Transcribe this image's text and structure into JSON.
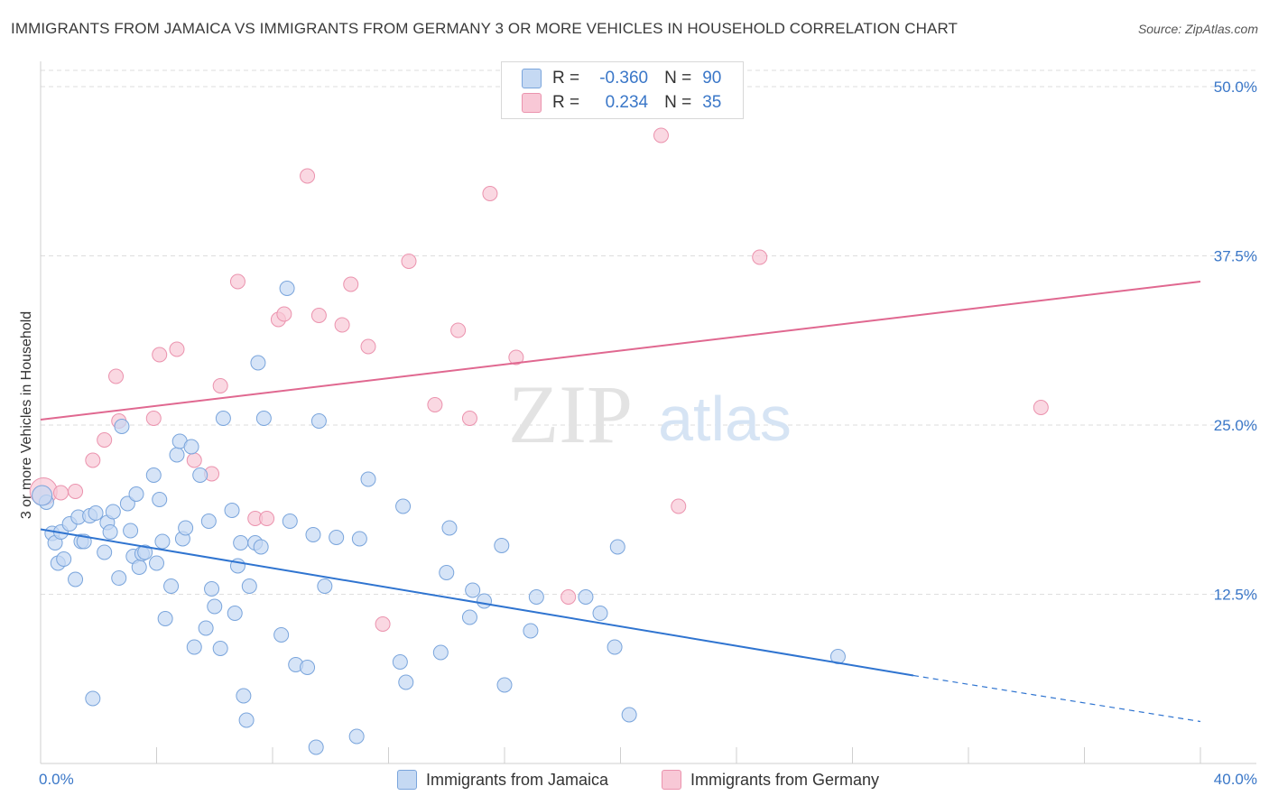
{
  "title": "IMMIGRANTS FROM JAMAICA VS IMMIGRANTS FROM GERMANY 3 OR MORE VEHICLES IN HOUSEHOLD CORRELATION CHART",
  "source": "Source: ZipAtlas.com",
  "colors": {
    "jamaica_fill": "#c5d9f3",
    "jamaica_stroke": "#7aa5dc",
    "jamaica_line": "#2f74d0",
    "germany_fill": "#f8c8d6",
    "germany_stroke": "#eb93ae",
    "germany_line": "#e06890",
    "axis_label": "#3a77c8",
    "grid": "#dedede"
  },
  "legend": {
    "r_label": "R =",
    "n_label": "N =",
    "jamaica": {
      "r": "-0.360",
      "n": "90"
    },
    "germany": {
      "r": "0.234",
      "n": "35"
    }
  },
  "bottom_legend": {
    "jamaica": "Immigrants from Jamaica",
    "germany": "Immigrants from Germany"
  },
  "watermark": {
    "zip": "ZIP",
    "atlas": "atlas"
  },
  "chart_data": {
    "type": "scatter",
    "title": "IMMIGRANTS FROM JAMAICA VS IMMIGRANTS FROM GERMANY 3 OR MORE VEHICLES IN HOUSEHOLD CORRELATION CHART",
    "xlabel": "",
    "ylabel": "3 or more Vehicles in Household",
    "xlim": [
      0,
      40
    ],
    "ylim": [
      0,
      50
    ],
    "x_tick_labels": {
      "min": "0.0%",
      "max": "40.0%"
    },
    "y_ticks": [
      {
        "value": 12.5,
        "label": "12.5%"
      },
      {
        "value": 25.0,
        "label": "25.0%"
      },
      {
        "value": 37.5,
        "label": "37.5%"
      },
      {
        "value": 50.0,
        "label": "50.0%"
      }
    ],
    "series": [
      {
        "name": "Immigrants from Jamaica",
        "r": -0.36,
        "n": 90,
        "trend": {
          "x0": 0,
          "y0": 17.3,
          "x1": 30.1,
          "y1": 6.5,
          "dash_x1": 40,
          "dash_y1": 3.1
        },
        "points": [
          [
            0.2,
            19.3
          ],
          [
            0.4,
            17.0
          ],
          [
            0.5,
            16.3
          ],
          [
            0.6,
            14.8
          ],
          [
            0.7,
            17.1
          ],
          [
            0.8,
            15.1
          ],
          [
            1.0,
            17.7
          ],
          [
            1.2,
            13.6
          ],
          [
            1.3,
            18.2
          ],
          [
            1.4,
            16.4
          ],
          [
            1.5,
            16.4
          ],
          [
            1.7,
            18.3
          ],
          [
            1.8,
            4.8
          ],
          [
            1.9,
            18.5
          ],
          [
            2.2,
            15.6
          ],
          [
            2.3,
            17.8
          ],
          [
            2.4,
            17.1
          ],
          [
            2.5,
            18.6
          ],
          [
            2.7,
            13.7
          ],
          [
            2.8,
            24.9
          ],
          [
            3.0,
            19.2
          ],
          [
            3.1,
            17.2
          ],
          [
            3.2,
            15.3
          ],
          [
            3.3,
            19.9
          ],
          [
            3.4,
            14.5
          ],
          [
            3.5,
            15.5
          ],
          [
            3.6,
            15.6
          ],
          [
            3.9,
            21.3
          ],
          [
            4.0,
            14.8
          ],
          [
            4.1,
            19.5
          ],
          [
            4.2,
            16.4
          ],
          [
            4.3,
            10.7
          ],
          [
            4.5,
            13.1
          ],
          [
            4.7,
            22.8
          ],
          [
            4.8,
            23.8
          ],
          [
            4.9,
            16.6
          ],
          [
            5.0,
            17.4
          ],
          [
            5.2,
            23.4
          ],
          [
            5.3,
            8.6
          ],
          [
            5.5,
            21.3
          ],
          [
            5.7,
            10.0
          ],
          [
            5.8,
            17.9
          ],
          [
            5.9,
            12.9
          ],
          [
            6.0,
            11.6
          ],
          [
            6.2,
            8.5
          ],
          [
            6.3,
            25.5
          ],
          [
            6.6,
            18.7
          ],
          [
            6.7,
            11.1
          ],
          [
            6.8,
            14.6
          ],
          [
            6.9,
            16.3
          ],
          [
            7.0,
            5.0
          ],
          [
            7.1,
            3.2
          ],
          [
            7.2,
            13.1
          ],
          [
            7.4,
            16.3
          ],
          [
            7.5,
            29.6
          ],
          [
            7.6,
            16.0
          ],
          [
            7.7,
            25.5
          ],
          [
            8.3,
            9.5
          ],
          [
            8.5,
            35.1
          ],
          [
            8.6,
            17.9
          ],
          [
            8.8,
            7.3
          ],
          [
            9.2,
            7.1
          ],
          [
            9.4,
            16.9
          ],
          [
            9.5,
            1.2
          ],
          [
            9.6,
            25.3
          ],
          [
            9.8,
            13.1
          ],
          [
            10.2,
            16.7
          ],
          [
            10.9,
            2.0
          ],
          [
            11.0,
            16.6
          ],
          [
            11.3,
            21.0
          ],
          [
            12.4,
            7.5
          ],
          [
            12.5,
            19.0
          ],
          [
            12.6,
            6.0
          ],
          [
            13.8,
            8.2
          ],
          [
            14.0,
            14.1
          ],
          [
            14.1,
            17.4
          ],
          [
            14.8,
            10.8
          ],
          [
            14.9,
            12.8
          ],
          [
            15.3,
            12.0
          ],
          [
            15.9,
            16.1
          ],
          [
            16.0,
            5.8
          ],
          [
            16.9,
            9.8
          ],
          [
            17.1,
            12.3
          ],
          [
            18.8,
            12.3
          ],
          [
            19.3,
            11.1
          ],
          [
            19.8,
            8.6
          ],
          [
            19.9,
            16.0
          ],
          [
            20.3,
            3.6
          ],
          [
            27.5,
            7.9
          ],
          [
            0.05,
            19.8
          ]
        ]
      },
      {
        "name": "Immigrants from Germany",
        "r": 0.234,
        "n": 35,
        "trend": {
          "x0": 0,
          "y0": 25.4,
          "x1": 40,
          "y1": 35.6
        },
        "points": [
          [
            0.1,
            20.1
          ],
          [
            0.7,
            20.0
          ],
          [
            1.2,
            20.1
          ],
          [
            1.8,
            22.4
          ],
          [
            2.2,
            23.9
          ],
          [
            2.6,
            28.6
          ],
          [
            2.7,
            25.3
          ],
          [
            3.9,
            25.5
          ],
          [
            4.1,
            30.2
          ],
          [
            4.7,
            30.6
          ],
          [
            5.3,
            22.4
          ],
          [
            5.9,
            21.4
          ],
          [
            6.2,
            27.9
          ],
          [
            6.8,
            35.6
          ],
          [
            7.4,
            18.1
          ],
          [
            7.8,
            18.1
          ],
          [
            8.2,
            32.8
          ],
          [
            8.4,
            33.2
          ],
          [
            9.2,
            43.4
          ],
          [
            9.6,
            33.1
          ],
          [
            10.4,
            32.4
          ],
          [
            10.7,
            35.4
          ],
          [
            11.3,
            30.8
          ],
          [
            11.8,
            10.3
          ],
          [
            12.7,
            37.1
          ],
          [
            13.6,
            26.5
          ],
          [
            14.4,
            32.0
          ],
          [
            14.8,
            25.5
          ],
          [
            15.5,
            42.1
          ],
          [
            16.4,
            30.0
          ],
          [
            18.2,
            12.3
          ],
          [
            21.4,
            46.4
          ],
          [
            22.0,
            19.0
          ],
          [
            24.8,
            37.4
          ],
          [
            34.5,
            26.3
          ]
        ]
      }
    ]
  }
}
